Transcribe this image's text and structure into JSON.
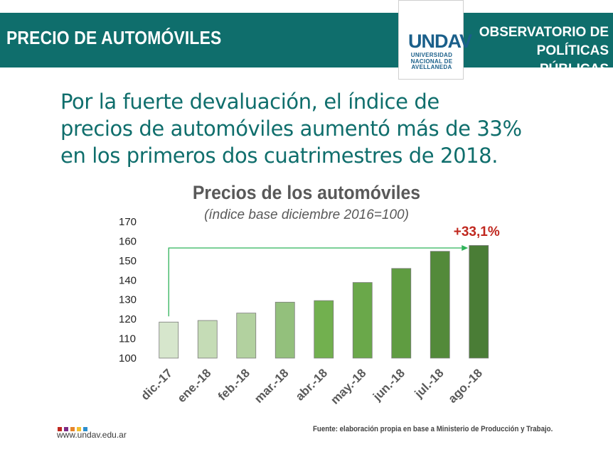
{
  "header": {
    "title": "PRECIO DE AUTOMÓVILES",
    "observatorio_line1": "OBSERVATORIO DE",
    "observatorio_line2": "POLÍTICAS PÚBLICAS",
    "logo_mark": "UNDAV",
    "logo_sub_line1": "UNIVERSIDAD",
    "logo_sub_line2": "NACIONAL DE",
    "logo_sub_line3": "AVELLANEDA",
    "bar_color": "#0f6e6c"
  },
  "headline": {
    "line1": "Por la fuerte devaluación, el índice de",
    "line2": "precios de automóviles aumentó más de 33%",
    "line3": "en los primeros dos cuatrimestres de 2018."
  },
  "chart_data": {
    "type": "bar",
    "title": "Precios de los automóviles",
    "subtitle": "(índice base diciembre 2016=100)",
    "categories": [
      "dic.-17",
      "ene.-18",
      "feb.-18",
      "mar.-18",
      "abr.-18",
      "may.-18",
      "jun.-18",
      "jul.-18",
      "ago.-18"
    ],
    "values": [
      118.5,
      119.3,
      123.1,
      128.7,
      129.5,
      138.8,
      146,
      154.8,
      157.8
    ],
    "ylim": [
      100,
      170
    ],
    "yticks": [
      100,
      110,
      120,
      130,
      140,
      150,
      160,
      170
    ],
    "bar_colors": [
      "#d6e6cc",
      "#c5dcb6",
      "#b2d19f",
      "#93c07c",
      "#72b04f",
      "#6aa84a",
      "#5f9c41",
      "#538a3a",
      "#4a7d36"
    ],
    "annotation": "+33,1%",
    "annotation_color": "#c0281f",
    "arrow_color": "#2fb35a",
    "grid": false
  },
  "footer": {
    "url": "www.undav.edu.ar",
    "source": "Fuente: elaboración propia en base a Ministerio de Producción y Trabajo.",
    "dot_colors": [
      "#c0281f",
      "#7d2a85",
      "#e6852a",
      "#f2c12e",
      "#2b8fce"
    ]
  }
}
